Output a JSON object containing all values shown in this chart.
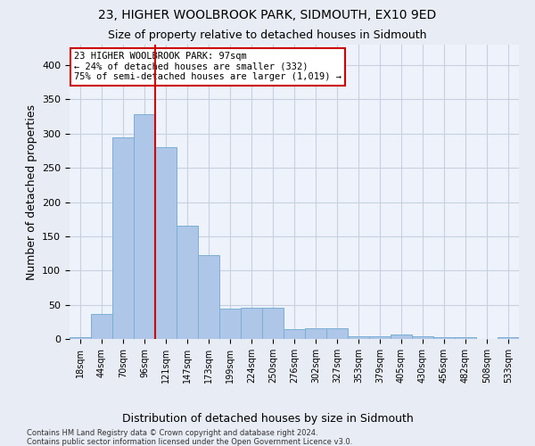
{
  "title": "23, HIGHER WOOLBROOK PARK, SIDMOUTH, EX10 9ED",
  "subtitle": "Size of property relative to detached houses in Sidmouth",
  "xlabel": "Distribution of detached houses by size in Sidmouth",
  "ylabel": "Number of detached properties",
  "footnote1": "Contains HM Land Registry data © Crown copyright and database right 2024.",
  "footnote2": "Contains public sector information licensed under the Open Government Licence v3.0.",
  "bar_labels": [
    "18sqm",
    "44sqm",
    "70sqm",
    "96sqm",
    "121sqm",
    "147sqm",
    "173sqm",
    "199sqm",
    "224sqm",
    "250sqm",
    "276sqm",
    "302sqm",
    "327sqm",
    "353sqm",
    "379sqm",
    "405sqm",
    "430sqm",
    "456sqm",
    "482sqm",
    "508sqm",
    "533sqm"
  ],
  "bar_values": [
    3,
    37,
    295,
    328,
    280,
    165,
    123,
    44,
    45,
    45,
    14,
    15,
    15,
    4,
    4,
    6,
    4,
    3,
    2,
    0,
    3
  ],
  "bar_color": "#aec6e8",
  "bar_edge_color": "#7bafd4",
  "highlight_index": 3,
  "red_line_color": "#cc0000",
  "annotation_text": "23 HIGHER WOOLBROOK PARK: 97sqm\n← 24% of detached houses are smaller (332)\n75% of semi-detached houses are larger (1,019) →",
  "annotation_box_color": "#ffffff",
  "annotation_border_color": "#cc0000",
  "bg_color": "#e8ecf5",
  "plot_bg_color": "#eef2fb",
  "grid_color": "#c8d0e0",
  "title_fontsize": 10,
  "subtitle_fontsize": 9,
  "axis_label_fontsize": 9,
  "tick_fontsize": 7,
  "annotation_fontsize": 7.5,
  "ylim": [
    0,
    430
  ],
  "yticks": [
    0,
    50,
    100,
    150,
    200,
    250,
    300,
    350,
    400
  ]
}
